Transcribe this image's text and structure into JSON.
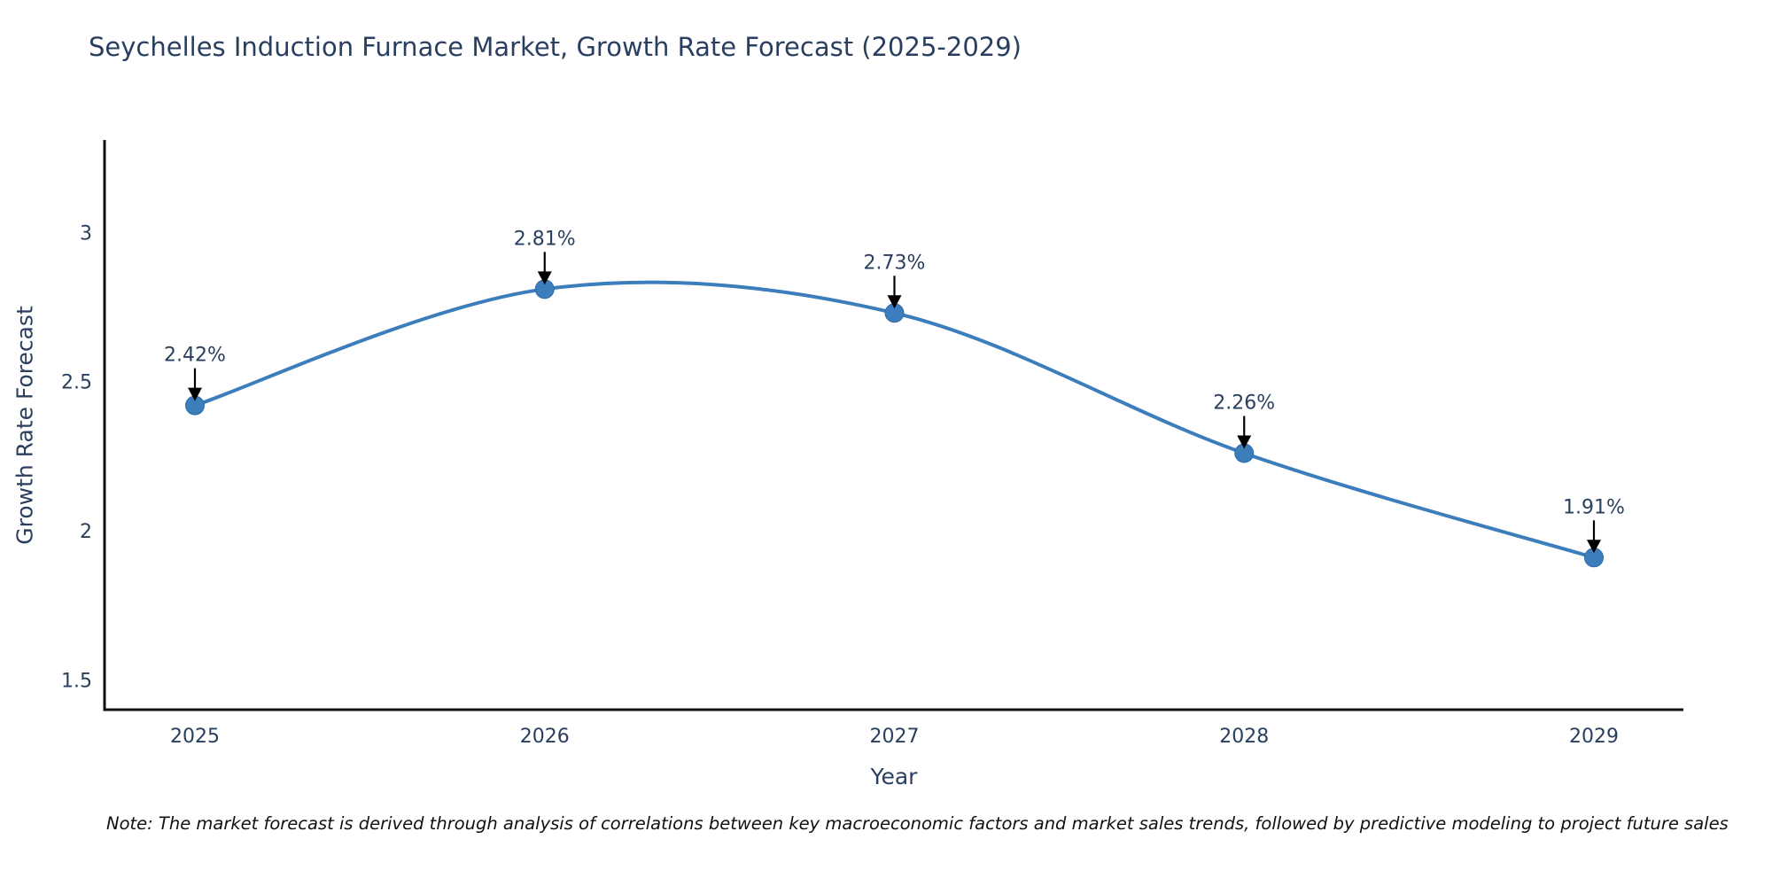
{
  "chart_data": {
    "type": "line",
    "title": "Seychelles Induction Furnace Market, Growth Rate Forecast (2025-2029)",
    "xlabel": "Year",
    "ylabel": "Growth Rate Forecast",
    "categories": [
      2025,
      2026,
      2027,
      2028,
      2029
    ],
    "values": [
      2.42,
      2.81,
      2.73,
      2.26,
      1.91
    ],
    "point_labels": [
      "2.42%",
      "2.81%",
      "2.73%",
      "2.26%",
      "1.91%"
    ],
    "series_name": "Growth Rate Forecast",
    "line_shape": "spline",
    "markers": true,
    "grid": false,
    "legend_position": "none",
    "yticks": [
      1.5,
      2,
      2.5,
      3
    ],
    "ylim": [
      1.4,
      3.31
    ],
    "colors": {
      "line": "#3c7dbb",
      "marker": "#3c7dbb",
      "marker_edge": "#2f6ba8",
      "annotation_arrow": "#000000",
      "axis_line": "#111111",
      "tick_text": "#2a3f5f",
      "title_text": "#2a3f5f",
      "note_text": "#111111",
      "background": "#ffffff"
    }
  },
  "note": {
    "text": "Note: The market forecast is derived through analysis of correlations between key macroeconomic factors and market sales trends, followed by predictive modeling to project future sales"
  }
}
